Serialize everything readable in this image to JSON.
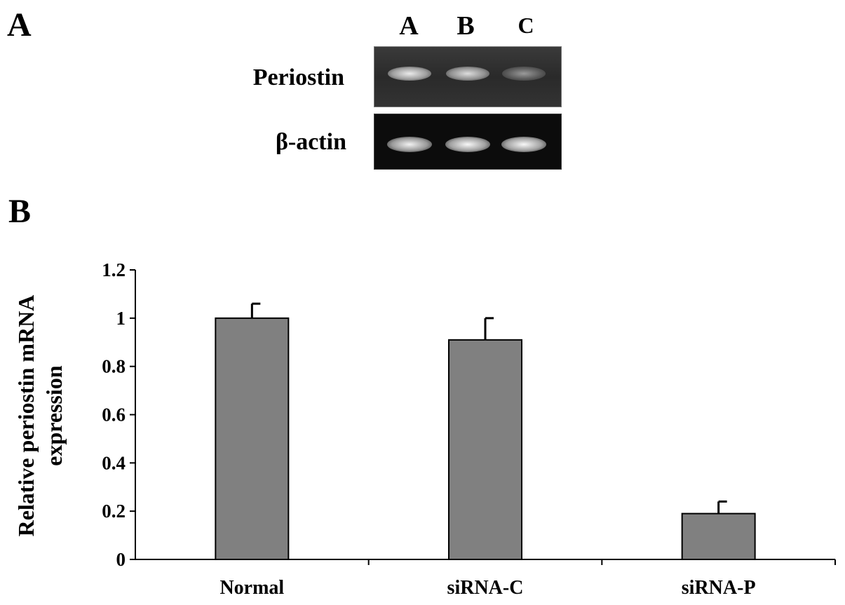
{
  "panel_a": {
    "letter": "A",
    "lanes": [
      "A",
      "B",
      "C"
    ],
    "rows": [
      {
        "label": "Periostin",
        "band_intensity": [
          0.85,
          0.75,
          0.25
        ]
      },
      {
        "label": "β-actin",
        "band_intensity": [
          0.9,
          0.95,
          0.95
        ]
      }
    ]
  },
  "panel_b": {
    "letter": "B"
  },
  "chart_data": {
    "type": "bar",
    "categories": [
      "Normal",
      "siRNA-C",
      "siRNA-P"
    ],
    "values": [
      1.0,
      0.91,
      0.19
    ],
    "errors": [
      0.06,
      0.09,
      0.05
    ],
    "ylabel_lines": [
      "Relative periostin mRNA",
      "expression"
    ],
    "xlabel": "",
    "ylim": [
      0,
      1.2
    ],
    "yticks": [
      0,
      0.2,
      0.4,
      0.6,
      0.8,
      1,
      1.2
    ],
    "ytick_labels": [
      "0",
      "0.2",
      "0.4",
      "0.6",
      "0.8",
      "1",
      "1.2"
    ],
    "bar_color": "#808080",
    "grid": false,
    "legend": "none"
  }
}
